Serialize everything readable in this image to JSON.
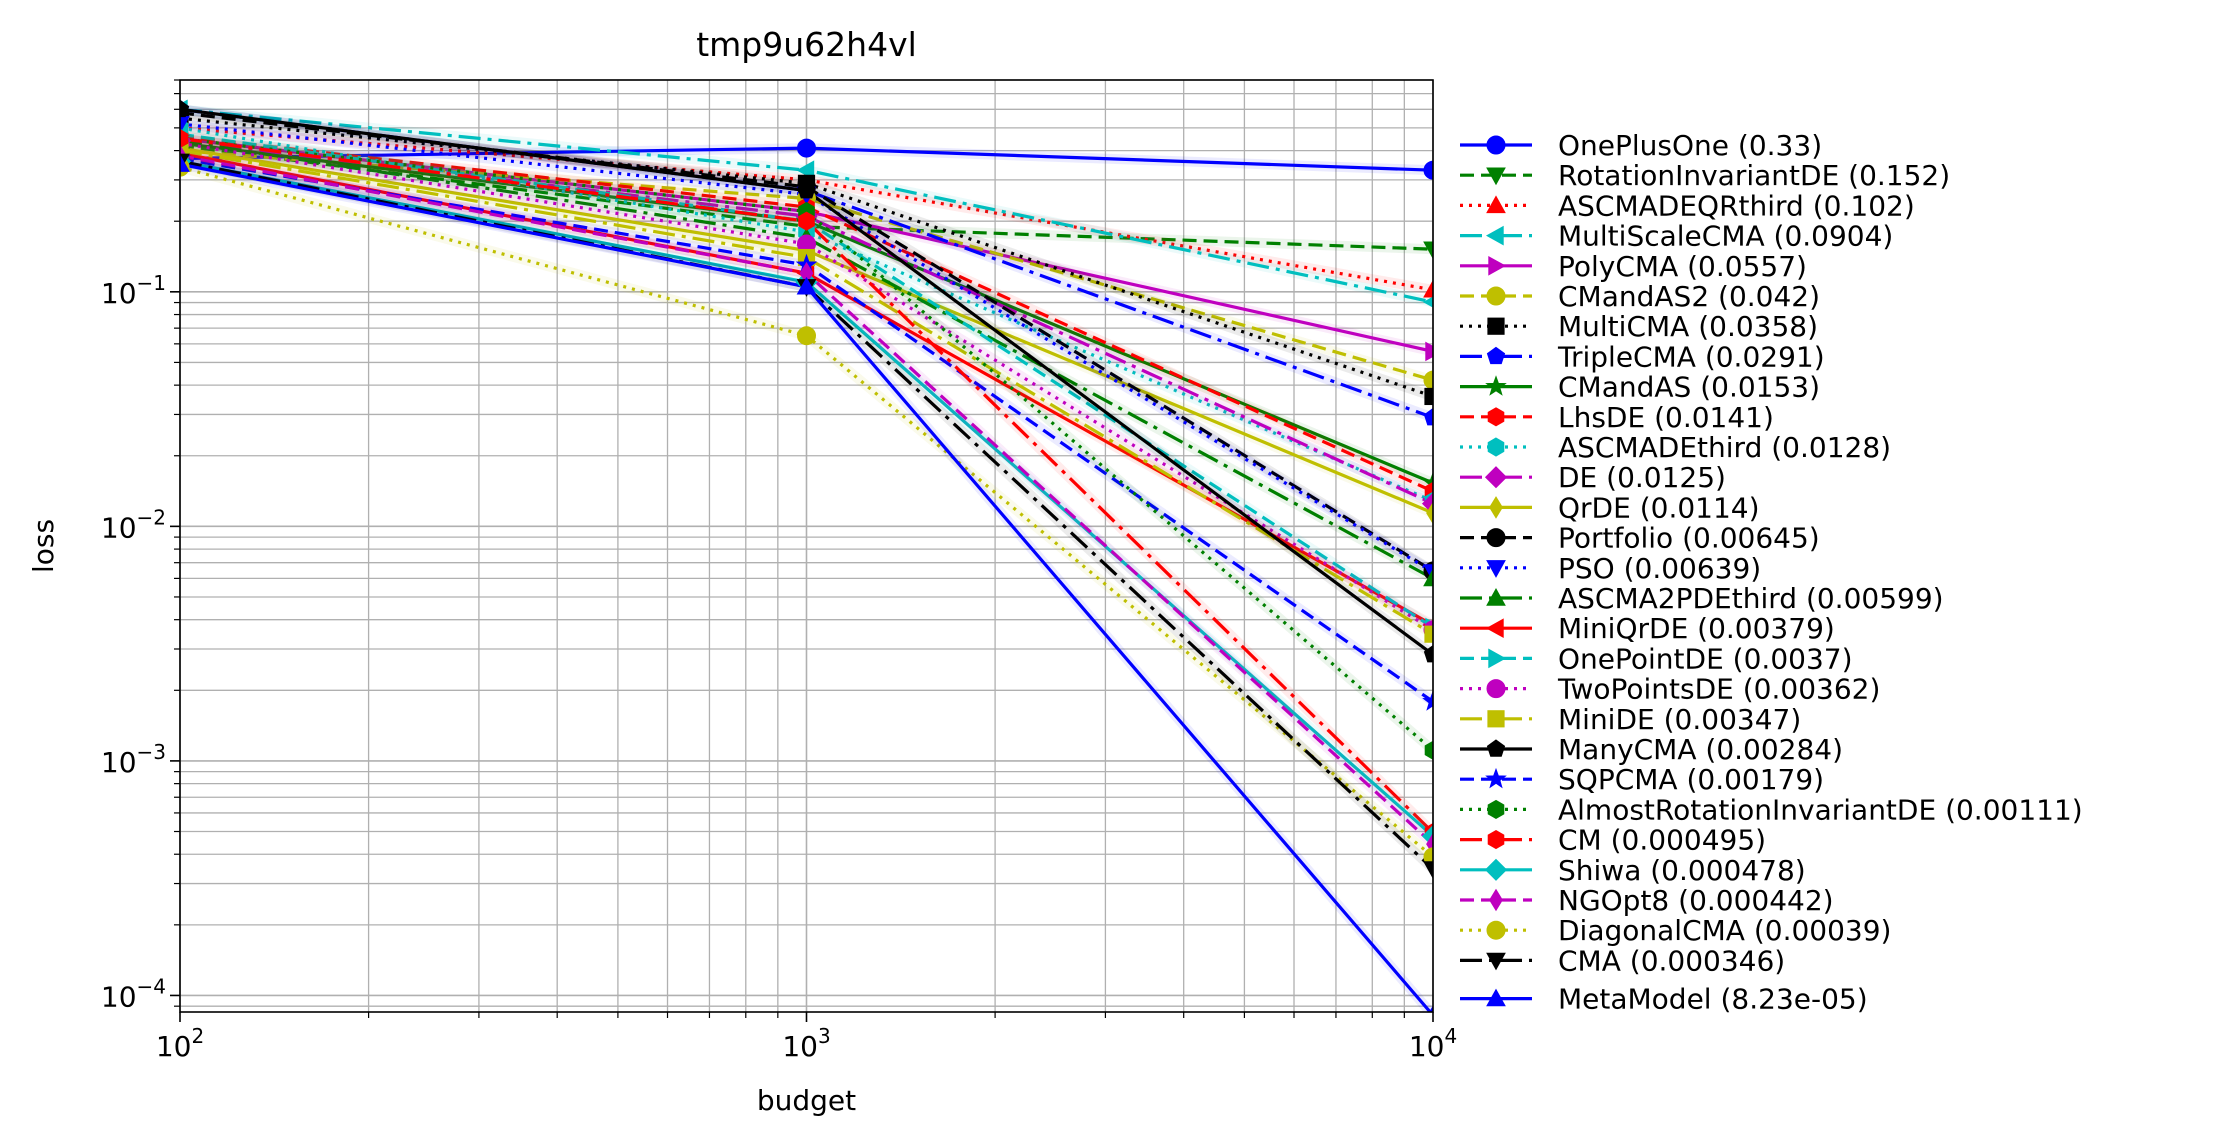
{
  "chart_data": {
    "type": "line",
    "title": "tmp9u62h4vl",
    "xlabel": "budget",
    "ylabel": "loss",
    "xscale": "log",
    "yscale": "log",
    "xlim": [
      100,
      10000
    ],
    "ylim": [
      8.5e-05,
      0.8
    ],
    "grid": true,
    "legend_position": "right-outside",
    "x": [
      100,
      1000,
      10000
    ],
    "x_ticks": [
      {
        "value": 100,
        "base": "10",
        "exp": "2"
      },
      {
        "value": 1000,
        "base": "10",
        "exp": "3"
      },
      {
        "value": 10000,
        "base": "10",
        "exp": "4"
      }
    ],
    "y_ticks": [
      {
        "value": 0.1,
        "base": "10",
        "exp": "−1"
      },
      {
        "value": 0.01,
        "base": "10",
        "exp": "−2"
      },
      {
        "value": 0.001,
        "base": "10",
        "exp": "−3"
      },
      {
        "value": 0.0001,
        "base": "10",
        "exp": "−4"
      }
    ],
    "series": [
      {
        "name": "OnePlusOne (0.33)",
        "color": "#0000ff",
        "dash": "",
        "marker": "circle",
        "values": [
          0.37,
          0.41,
          0.33
        ]
      },
      {
        "name": "RotationInvariantDE (0.152)",
        "color": "#008000",
        "dash": "14,7",
        "marker": "tri-down",
        "values": [
          0.42,
          0.19,
          0.152
        ]
      },
      {
        "name": "ASCMADEQRthird (0.102)",
        "color": "#ff0000",
        "dash": "3,6",
        "marker": "tri-up",
        "values": [
          0.5,
          0.3,
          0.102
        ]
      },
      {
        "name": "MultiScaleCMA (0.0904)",
        "color": "#00bfbf",
        "dash": "22,7,4,7",
        "marker": "tri-left",
        "values": [
          0.6,
          0.33,
          0.0904
        ]
      },
      {
        "name": "PolyCMA (0.0557)",
        "color": "#bf00bf",
        "dash": "",
        "marker": "tri-right",
        "values": [
          0.45,
          0.22,
          0.0557
        ]
      },
      {
        "name": "CMandAS2 (0.042)",
        "color": "#bfbf00",
        "dash": "14,7",
        "marker": "circle",
        "values": [
          0.4,
          0.25,
          0.042
        ]
      },
      {
        "name": "MultiCMA (0.0358)",
        "color": "#000000",
        "dash": "3,6",
        "marker": "square",
        "values": [
          0.55,
          0.29,
          0.0358
        ]
      },
      {
        "name": "TripleCMA (0.0291)",
        "color": "#0000ff",
        "dash": "22,7,4,7",
        "marker": "pentagon",
        "values": [
          0.6,
          0.27,
          0.0291
        ]
      },
      {
        "name": "CMandAS (0.0153)",
        "color": "#008000",
        "dash": "",
        "marker": "star",
        "values": [
          0.43,
          0.2,
          0.0153
        ]
      },
      {
        "name": "LhsDE (0.0141)",
        "color": "#ff0000",
        "dash": "14,7",
        "marker": "hexagon",
        "values": [
          0.46,
          0.23,
          0.0141
        ]
      },
      {
        "name": "ASCMADEthird (0.0128)",
        "color": "#00bfbf",
        "dash": "3,6",
        "marker": "hexagon",
        "values": [
          0.5,
          0.18,
          0.0128
        ]
      },
      {
        "name": "DE (0.0125)",
        "color": "#bf00bf",
        "dash": "22,7,4,7",
        "marker": "diamond",
        "values": [
          0.44,
          0.21,
          0.0125
        ]
      },
      {
        "name": "QrDE (0.0114)",
        "color": "#bfbf00",
        "dash": "",
        "marker": "thin-diamond",
        "values": [
          0.41,
          0.15,
          0.0114
        ]
      },
      {
        "name": "Portfolio (0.00645)",
        "color": "#000000",
        "dash": "14,7",
        "marker": "circle",
        "values": [
          0.58,
          0.28,
          0.00645
        ]
      },
      {
        "name": "PSO (0.00639)",
        "color": "#0000ff",
        "dash": "3,6",
        "marker": "tri-down",
        "values": [
          0.52,
          0.26,
          0.00639
        ]
      },
      {
        "name": "ASCMA2PDEthird (0.00599)",
        "color": "#008000",
        "dash": "22,7,4,7",
        "marker": "tri-up",
        "values": [
          0.44,
          0.17,
          0.00599
        ]
      },
      {
        "name": "MiniQrDE (0.00379)",
        "color": "#ff0000",
        "dash": "",
        "marker": "tri-left",
        "values": [
          0.39,
          0.12,
          0.00379
        ]
      },
      {
        "name": "OnePointDE (0.0037)",
        "color": "#00bfbf",
        "dash": "14,7",
        "marker": "tri-right",
        "values": [
          0.47,
          0.2,
          0.0037
        ]
      },
      {
        "name": "TwoPointsDE (0.00362)",
        "color": "#bf00bf",
        "dash": "3,6",
        "marker": "circle",
        "values": [
          0.43,
          0.16,
          0.00362
        ]
      },
      {
        "name": "MiniDE (0.00347)",
        "color": "#bfbf00",
        "dash": "22,7,4,7",
        "marker": "square",
        "values": [
          0.4,
          0.14,
          0.00347
        ]
      },
      {
        "name": "ManyCMA (0.00284)",
        "color": "#000000",
        "dash": "",
        "marker": "pentagon",
        "values": [
          0.6,
          0.27,
          0.00284
        ]
      },
      {
        "name": "SQPCMA (0.00179)",
        "color": "#0000ff",
        "dash": "14,7",
        "marker": "star",
        "values": [
          0.37,
          0.13,
          0.00179
        ]
      },
      {
        "name": "AlmostRotationInvariantDE (0.00111)",
        "color": "#008000",
        "dash": "3,6",
        "marker": "hexagon",
        "values": [
          0.45,
          0.22,
          0.00111
        ]
      },
      {
        "name": "CM (0.000495)",
        "color": "#ff0000",
        "dash": "22,7,4,7",
        "marker": "hexagon",
        "values": [
          0.45,
          0.2,
          0.000495
        ]
      },
      {
        "name": "Shiwa (0.000478)",
        "color": "#00bfbf",
        "dash": "",
        "marker": "diamond",
        "values": [
          0.36,
          0.11,
          0.000478
        ]
      },
      {
        "name": "NGOpt8 (0.000442)",
        "color": "#bf00bf",
        "dash": "14,7",
        "marker": "thin-diamond",
        "values": [
          0.38,
          0.12,
          0.000442
        ]
      },
      {
        "name": "DiagonalCMA (0.00039)",
        "color": "#bfbf00",
        "dash": "3,6",
        "marker": "circle",
        "values": [
          0.34,
          0.065,
          0.00039
        ]
      },
      {
        "name": "CMA (0.000346)",
        "color": "#000000",
        "dash": "22,7,4,7",
        "marker": "tri-down",
        "values": [
          0.36,
          0.105,
          0.000346
        ]
      },
      {
        "name": "MetaModel (8.23e-05)",
        "color": "#0000ff",
        "dash": "",
        "marker": "tri-up",
        "values": [
          0.35,
          0.105,
          8.23e-05
        ]
      }
    ]
  }
}
